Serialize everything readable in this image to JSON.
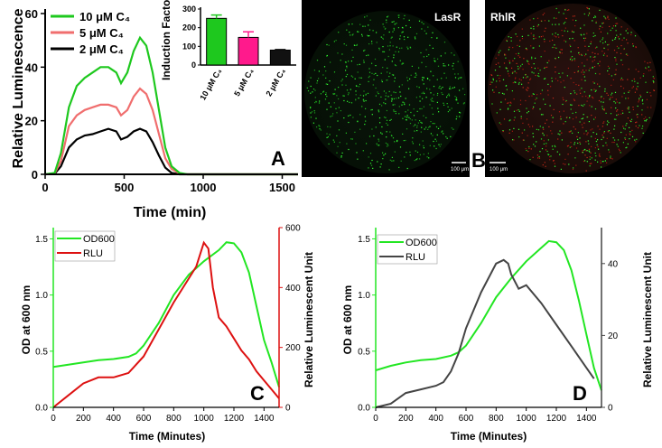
{
  "chart_data": [
    {
      "panel": "A",
      "type": "line",
      "xlabel": "Time (min)",
      "ylabel": "Relative Luminescence",
      "xlim": [
        0,
        1600
      ],
      "ylim": [
        0,
        60
      ],
      "xticks": [
        "0",
        "500",
        "1000",
        "1500"
      ],
      "yticks": [
        "0",
        "20",
        "40",
        "60"
      ],
      "legend": [
        "10 μM C₄",
        "5 μM C₄",
        "2 μM C₄"
      ],
      "series": [
        {
          "name": "10 μM C₄",
          "color": "#1ec81e",
          "x": [
            0,
            60,
            100,
            150,
            200,
            250,
            300,
            350,
            400,
            450,
            480,
            520,
            560,
            600,
            640,
            680,
            720,
            760,
            800,
            850,
            900,
            1000,
            1600
          ],
          "y": [
            0,
            0.5,
            8,
            25,
            33,
            36,
            38,
            40,
            40,
            38,
            34,
            38,
            46,
            51,
            48,
            38,
            24,
            10,
            3,
            0.5,
            0,
            0,
            0
          ]
        },
        {
          "name": "5 μM C₄",
          "color": "#f06e6e",
          "x": [
            0,
            60,
            100,
            150,
            200,
            250,
            300,
            350,
            400,
            450,
            480,
            520,
            560,
            600,
            640,
            680,
            720,
            760,
            800,
            850,
            900,
            1000,
            1600
          ],
          "y": [
            0,
            0.4,
            5,
            18,
            22,
            24,
            25,
            26,
            26,
            25,
            22,
            24,
            29,
            32,
            30,
            24,
            15,
            6,
            2,
            0.3,
            0,
            0,
            0
          ]
        },
        {
          "name": "2 μM C₄",
          "color": "#000000",
          "x": [
            0,
            60,
            100,
            150,
            200,
            250,
            300,
            350,
            400,
            450,
            480,
            520,
            560,
            600,
            640,
            680,
            720,
            760,
            800,
            850,
            900,
            1000,
            1600
          ],
          "y": [
            0,
            0.2,
            3,
            10,
            13,
            14.5,
            15,
            16,
            17,
            16,
            13,
            14,
            16,
            17,
            16,
            12,
            7,
            2.5,
            0.5,
            0,
            0,
            0,
            0
          ]
        }
      ],
      "inset": {
        "type": "bar",
        "ylabel": "Induction Factor",
        "ylim": [
          0,
          300
        ],
        "yticks": [
          "0",
          "100",
          "200",
          "300"
        ],
        "categories": [
          "10 μM C₄",
          "5 μM C₄",
          "2 μM C₄"
        ],
        "values": [
          250,
          148,
          80
        ],
        "errors": [
          18,
          30,
          3
        ],
        "colors": [
          "#1ec81e",
          "#ff1a8c",
          "#111111"
        ]
      }
    },
    {
      "panel": "C",
      "type": "line",
      "xlabel": "Time (Minutes)",
      "ylabel": "OD at 600 nm",
      "y2label": "Relative Luminescent Unit",
      "xlim": [
        0,
        1500
      ],
      "ylim": [
        0,
        1.6
      ],
      "y2lim": [
        0,
        600
      ],
      "xticks": [
        "0",
        "200",
        "400",
        "600",
        "800",
        "1000",
        "1200",
        "1400"
      ],
      "yticks": [
        "0.0",
        "0.5",
        "1.0",
        "1.5"
      ],
      "y2ticks": [
        "0",
        "200",
        "400",
        "600"
      ],
      "legend": [
        "OD600",
        "RLU"
      ],
      "series": [
        {
          "name": "OD600",
          "axis": "left",
          "color": "#22e622",
          "x": [
            0,
            100,
            200,
            300,
            400,
            500,
            550,
            600,
            700,
            800,
            900,
            1000,
            1100,
            1150,
            1200,
            1250,
            1300,
            1350,
            1400,
            1450,
            1500
          ],
          "y": [
            0.36,
            0.38,
            0.4,
            0.42,
            0.43,
            0.45,
            0.48,
            0.55,
            0.75,
            1.0,
            1.18,
            1.3,
            1.4,
            1.47,
            1.46,
            1.38,
            1.2,
            0.9,
            0.6,
            0.4,
            0.18
          ]
        },
        {
          "name": "RLU",
          "axis": "right",
          "color": "#dd1111",
          "x": [
            0,
            100,
            200,
            300,
            400,
            500,
            600,
            700,
            800,
            900,
            950,
            1000,
            1030,
            1060,
            1100,
            1150,
            1200,
            1250,
            1300,
            1350,
            1400,
            1450,
            1500
          ],
          "y": [
            0,
            40,
            80,
            100,
            100,
            115,
            170,
            260,
            350,
            430,
            470,
            550,
            530,
            400,
            300,
            270,
            230,
            190,
            160,
            120,
            90,
            60,
            30
          ]
        }
      ]
    },
    {
      "panel": "D",
      "type": "line",
      "xlabel": "Time (Minutes)",
      "ylabel": "OD at 600 nm",
      "y2label": "Relative Luminescent Unit",
      "xlim": [
        0,
        1500
      ],
      "ylim": [
        0,
        1.6
      ],
      "y2lim": [
        0,
        50
      ],
      "xticks": [
        "0",
        "200",
        "400",
        "600",
        "800",
        "1000",
        "1200",
        "1400"
      ],
      "yticks": [
        "0.0",
        "0.5",
        "1.0",
        "1.5"
      ],
      "y2ticks": [
        "0",
        "20",
        "40"
      ],
      "legend": [
        "OD600",
        "RLU"
      ],
      "series": [
        {
          "name": "OD600",
          "axis": "left",
          "color": "#22e622",
          "x": [
            0,
            100,
            200,
            300,
            400,
            500,
            550,
            600,
            700,
            800,
            900,
            1000,
            1100,
            1150,
            1200,
            1250,
            1300,
            1350,
            1400,
            1450,
            1500
          ],
          "y": [
            0.33,
            0.37,
            0.4,
            0.42,
            0.43,
            0.46,
            0.49,
            0.55,
            0.75,
            0.98,
            1.15,
            1.3,
            1.42,
            1.48,
            1.47,
            1.4,
            1.22,
            0.95,
            0.65,
            0.35,
            0.15
          ]
        },
        {
          "name": "RLU",
          "axis": "right",
          "color": "#444444",
          "x": [
            0,
            100,
            200,
            300,
            400,
            450,
            500,
            550,
            600,
            700,
            800,
            850,
            880,
            900,
            950,
            1000,
            1100,
            1200,
            1300,
            1400,
            1450
          ],
          "y": [
            0,
            1,
            4,
            5,
            6,
            7,
            10,
            15,
            22,
            32,
            40,
            41,
            40,
            37,
            33,
            34,
            29,
            23,
            17,
            11,
            8
          ]
        }
      ]
    }
  ],
  "panel_b": {
    "letter": "B",
    "images": [
      {
        "label": "LasR",
        "scale_bar": "100 μm"
      },
      {
        "label": "RhlR",
        "scale_bar": "100 μm"
      }
    ]
  },
  "colors": {
    "green": "#1ec81e",
    "salmon": "#f06e6e",
    "black": "#000000",
    "od_green": "#22e622",
    "rlu_red": "#dd1111",
    "rlu_gray": "#444444"
  }
}
